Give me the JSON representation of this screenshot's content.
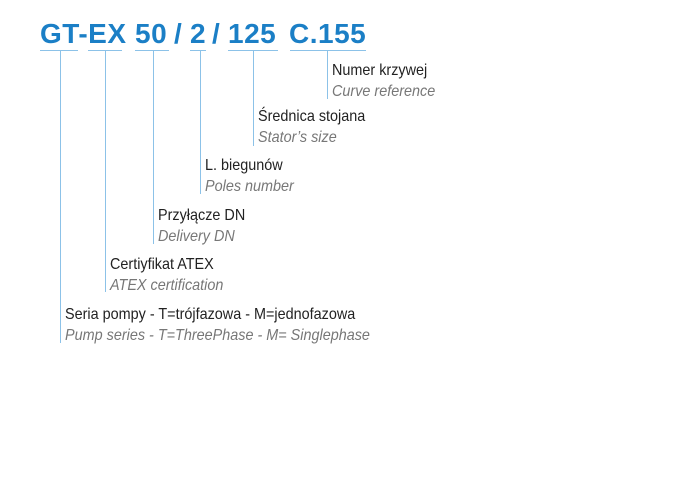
{
  "code": {
    "series": "GT-EX",
    "delivery": "50",
    "sep1": "/",
    "poles": "2",
    "sep2": "/",
    "stator": "125",
    "curve": "C.155"
  },
  "accent_color": "#1b7fc6",
  "labels": [
    {
      "pl": "Numer krzywej",
      "en": "Curve reference"
    },
    {
      "pl": "Średnica stojana",
      "en": "Stator’s size"
    },
    {
      "pl": "L. biegunów",
      "en": "Poles number"
    },
    {
      "pl": "Przyłącze DN",
      "en": "Delivery DN"
    },
    {
      "pl": "Certiyfikat ATEX",
      "en": "ATEX certification"
    },
    {
      "pl": "Seria pompy - T=trójfazowa - M=jednofazowa",
      "en": "Pump series - T=ThreePhase - M= Singlephase"
    }
  ]
}
